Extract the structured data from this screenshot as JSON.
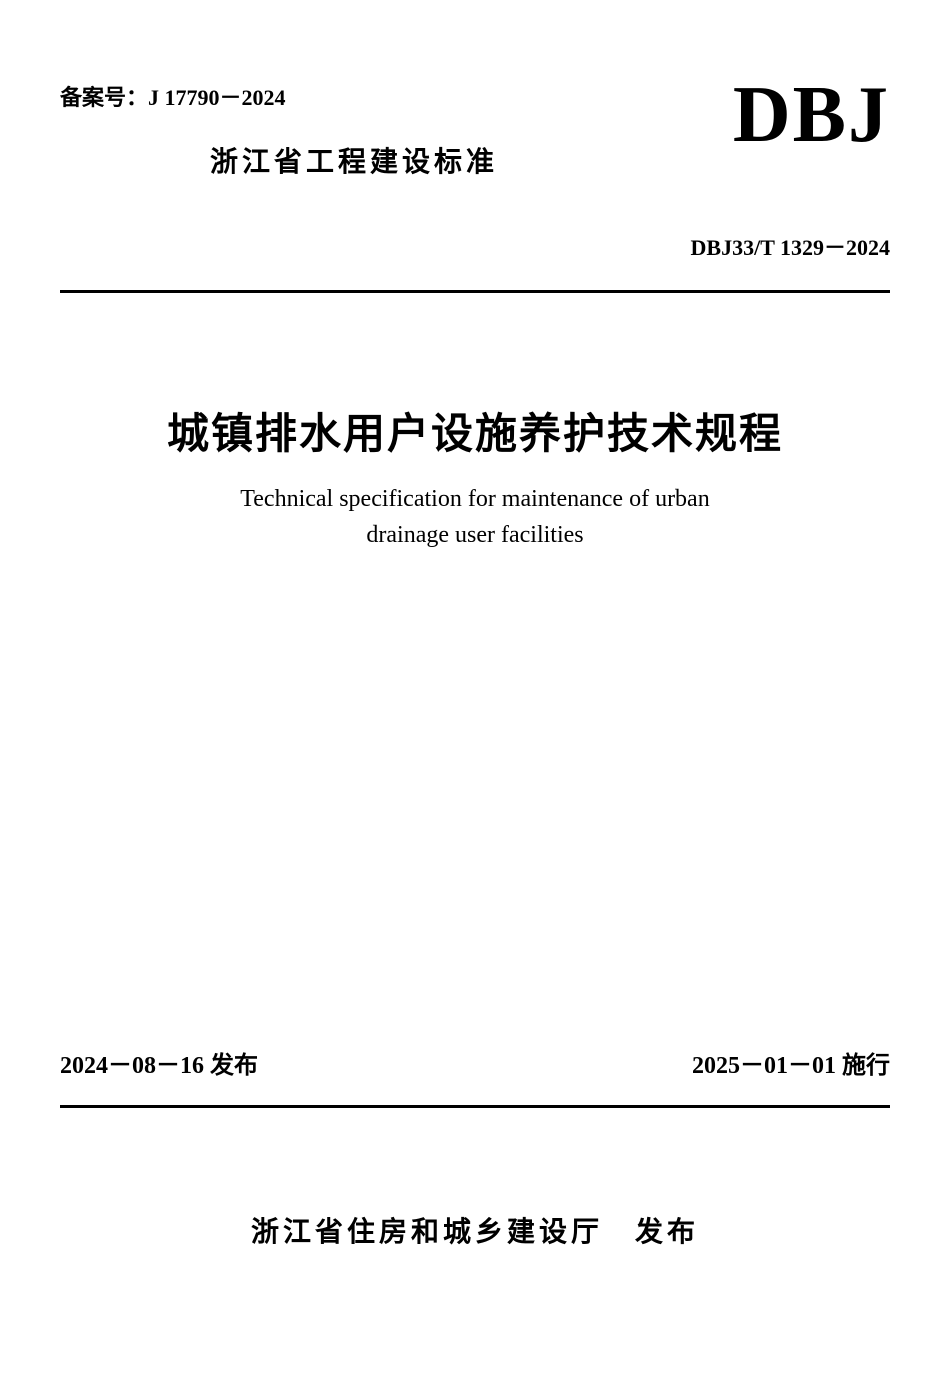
{
  "header": {
    "record_number": "备案号：J 17790－2024",
    "province_standard": "浙江省工程建设标准",
    "dbj_logo": "DBJ",
    "standard_code": "DBJ33/T 1329－2024"
  },
  "title": {
    "main_title": "城镇排水用户设施养护技术规程",
    "english_title_line1": "Technical specification for maintenance of urban",
    "english_title_line2": "drainage user facilities"
  },
  "dates": {
    "publish_date": "2024－08－16 发布",
    "effective_date": "2025－01－01 施行"
  },
  "publisher": "浙江省住房和城乡建设厅　发布",
  "styling": {
    "background_color": "#ffffff",
    "text_color": "#000000",
    "divider_color": "#000000",
    "divider_width": 3,
    "main_title_fontsize": 42,
    "english_title_fontsize": 24,
    "header_fontsize": 22,
    "province_standard_fontsize": 28,
    "dbj_logo_fontsize": 80,
    "dates_fontsize": 24,
    "publisher_fontsize": 28
  }
}
